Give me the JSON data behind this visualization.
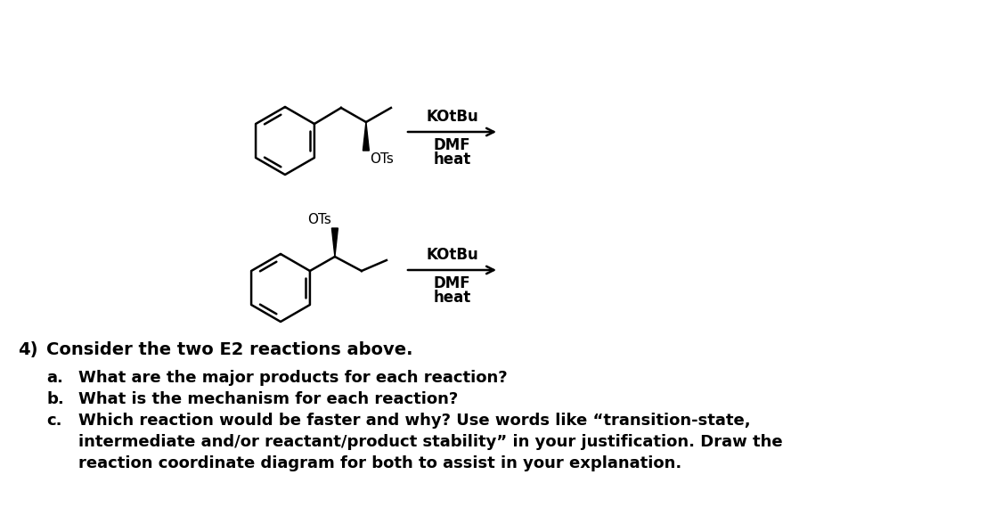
{
  "bg_color": "#ffffff",
  "figsize": [
    11.26,
    5.88
  ],
  "dpi": 100,
  "question_number": "4)",
  "question_text": "Consider the two E2 reactions above.",
  "parts": [
    {
      "label": "a.",
      "text": "What are the major products for each reaction?"
    },
    {
      "label": "b.",
      "text": "What is the mechanism for each reaction?"
    },
    {
      "label": "c.",
      "text": "Which reaction would be faster and why? Use words like “transition-state,",
      "continuation": "intermediate and/or reactant/product stability” in your justification. Draw the",
      "continuation2": "reaction coordinate diagram for both to assist in your explanation."
    }
  ],
  "rxn1": {
    "arrow_above": "KOtBu",
    "arrow_below1": "DMF",
    "arrow_below2": "heat",
    "ots_label": "OTs"
  },
  "rxn2": {
    "arrow_above": "KOtBu",
    "arrow_below1": "DMF",
    "arrow_below2": "heat",
    "ots_label": "OTs"
  }
}
